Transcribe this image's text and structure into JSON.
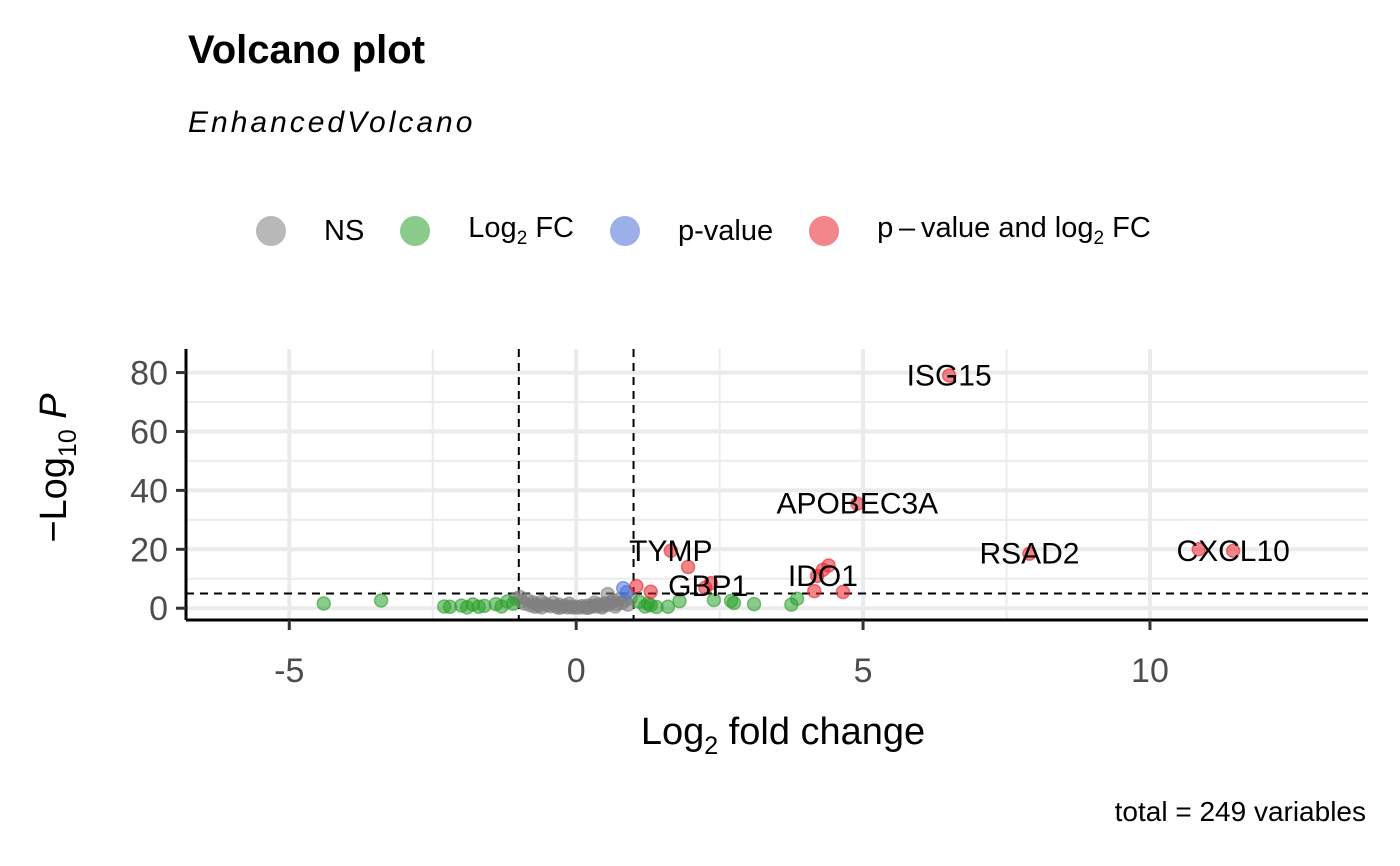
{
  "header": {
    "title": "Volcano plot",
    "subtitle": "EnhancedVolcano"
  },
  "legend": {
    "items": [
      {
        "label": "NS",
        "color": "#7f7f7f"
      },
      {
        "label_main": "Log",
        "label_sub": "2",
        "label_rest": " FC",
        "color": "#2ca02c"
      },
      {
        "label": "p-value",
        "color": "#4b6fd8"
      },
      {
        "label_main": "p – value and log",
        "label_sub": "2",
        "label_rest": " FC",
        "color": "#e8242b"
      }
    ]
  },
  "caption": "total = 249 variables",
  "chart_data": {
    "type": "scatter",
    "title": "Volcano plot",
    "subtitle": "EnhancedVolcano",
    "xlabel": "Log2 fold change",
    "ylabel": "-Log10 P",
    "xlabel_parts": {
      "main": "Log",
      "sub": "2",
      "rest": " fold change"
    },
    "ylabel_parts": {
      "pre": "−Log",
      "sub": "10",
      "italic": " P"
    },
    "xlim": [
      -6.8,
      13.8
    ],
    "ylim": [
      -4,
      88
    ],
    "xticks": [
      -5,
      0,
      5,
      10
    ],
    "yticks": [
      0,
      20,
      40,
      60,
      80
    ],
    "xtick_labels": [
      "-5",
      "0",
      "5",
      "10"
    ],
    "ytick_labels": [
      "0",
      "20",
      "40",
      "60",
      "80"
    ],
    "grid": true,
    "legend_position": "top",
    "cutoffs": {
      "log2fc": [
        -1,
        1
      ],
      "neg_log10_p": 5
    },
    "colors": {
      "NS": "#7f7f7f",
      "FC": "#2ca02c",
      "P": "#4b6fd8",
      "FC_P": "#e8242b"
    },
    "series": [
      {
        "name": "NS",
        "points": [
          [
            -1.05,
            3.2
          ],
          [
            -0.95,
            2.4
          ],
          [
            -0.9,
            1.6
          ],
          [
            -0.85,
            2.8
          ],
          [
            -0.8,
            1.0
          ],
          [
            -0.75,
            2.0
          ],
          [
            -0.7,
            1.3
          ],
          [
            -0.65,
            0.8
          ],
          [
            -0.6,
            2.2
          ],
          [
            -0.55,
            1.5
          ],
          [
            -0.5,
            1.1
          ],
          [
            -0.45,
            0.7
          ],
          [
            -0.4,
            1.8
          ],
          [
            -0.35,
            0.6
          ],
          [
            -0.3,
            1.2
          ],
          [
            -0.25,
            0.4
          ],
          [
            -0.2,
            0.9
          ],
          [
            -0.15,
            0.3
          ],
          [
            -0.1,
            0.6
          ],
          [
            -0.05,
            0.2
          ],
          [
            0.0,
            0.5
          ],
          [
            0.05,
            0.2
          ],
          [
            0.1,
            0.7
          ],
          [
            0.15,
            0.3
          ],
          [
            0.2,
            0.9
          ],
          [
            0.25,
            0.4
          ],
          [
            0.3,
            1.0
          ],
          [
            0.35,
            0.6
          ],
          [
            0.4,
            1.3
          ],
          [
            0.45,
            0.8
          ],
          [
            0.5,
            1.6
          ],
          [
            0.55,
            1.1
          ],
          [
            0.6,
            2.0
          ],
          [
            0.55,
            4.8
          ],
          [
            0.65,
            2.5
          ],
          [
            0.7,
            1.4
          ],
          [
            0.75,
            3.0
          ],
          [
            0.8,
            1.8
          ],
          [
            0.85,
            2.7
          ],
          [
            0.9,
            1.2
          ],
          [
            0.95,
            3.4
          ],
          [
            -0.98,
            3.8
          ],
          [
            -0.6,
            0.3
          ],
          [
            0.2,
            0.1
          ],
          [
            -0.3,
            0.15
          ],
          [
            0.45,
            0.25
          ],
          [
            -0.12,
            1.5
          ],
          [
            0.32,
            1.9
          ],
          [
            0.68,
            0.6
          ],
          [
            -0.72,
            0.5
          ]
        ]
      },
      {
        "name": "Log2 FC",
        "points": [
          [
            -4.4,
            1.6
          ],
          [
            -3.4,
            2.6
          ],
          [
            -2.3,
            0.6
          ],
          [
            -2.2,
            0.5
          ],
          [
            -2.0,
            0.9
          ],
          [
            -1.9,
            0.3
          ],
          [
            -1.8,
            1.3
          ],
          [
            -1.7,
            0.5
          ],
          [
            -1.6,
            0.8
          ],
          [
            -1.4,
            1.4
          ],
          [
            -1.3,
            0.6
          ],
          [
            -1.2,
            2.3
          ],
          [
            -1.1,
            1.5
          ],
          [
            1.1,
            2.2
          ],
          [
            1.2,
            0.6
          ],
          [
            1.3,
            1.0
          ],
          [
            1.4,
            0.4
          ],
          [
            1.6,
            0.5
          ],
          [
            1.8,
            2.4
          ],
          [
            2.4,
            2.8
          ],
          [
            2.7,
            2.5
          ],
          [
            2.75,
            1.8
          ],
          [
            3.1,
            1.4
          ],
          [
            3.75,
            1.2
          ],
          [
            3.85,
            3.2
          ],
          [
            1.25,
            1.5
          ]
        ]
      },
      {
        "name": "p-value",
        "points": [
          [
            0.82,
            6.8
          ],
          [
            0.88,
            5.4
          ]
        ]
      },
      {
        "name": "p - value and log2 FC",
        "points": [
          [
            6.5,
            79
          ],
          [
            4.9,
            35.5
          ],
          [
            1.65,
            19.5
          ],
          [
            1.95,
            14
          ],
          [
            2.35,
            8.5
          ],
          [
            2.25,
            7
          ],
          [
            1.05,
            7.5
          ],
          [
            1.3,
            5.6
          ],
          [
            4.15,
            5.8
          ],
          [
            4.2,
            11
          ],
          [
            4.3,
            13
          ],
          [
            4.4,
            14.5
          ],
          [
            4.65,
            5.5
          ],
          [
            7.9,
            18.5
          ],
          [
            10.85,
            20
          ],
          [
            11.45,
            19.5
          ]
        ]
      }
    ],
    "annotations": [
      {
        "label": "ISG15",
        "x": 6.5,
        "y": 79
      },
      {
        "label": "APOBEC3A",
        "x": 4.9,
        "y": 35.5
      },
      {
        "label": "TYMP",
        "x": 1.65,
        "y": 19.5
      },
      {
        "label": "GBP1",
        "x": 2.3,
        "y": 7.5
      },
      {
        "label": "IDO1",
        "x": 4.3,
        "y": 11
      },
      {
        "label": "RSAD2",
        "x": 7.9,
        "y": 18.5
      },
      {
        "label": "CXCL10",
        "x": 11.45,
        "y": 19.5
      }
    ]
  }
}
